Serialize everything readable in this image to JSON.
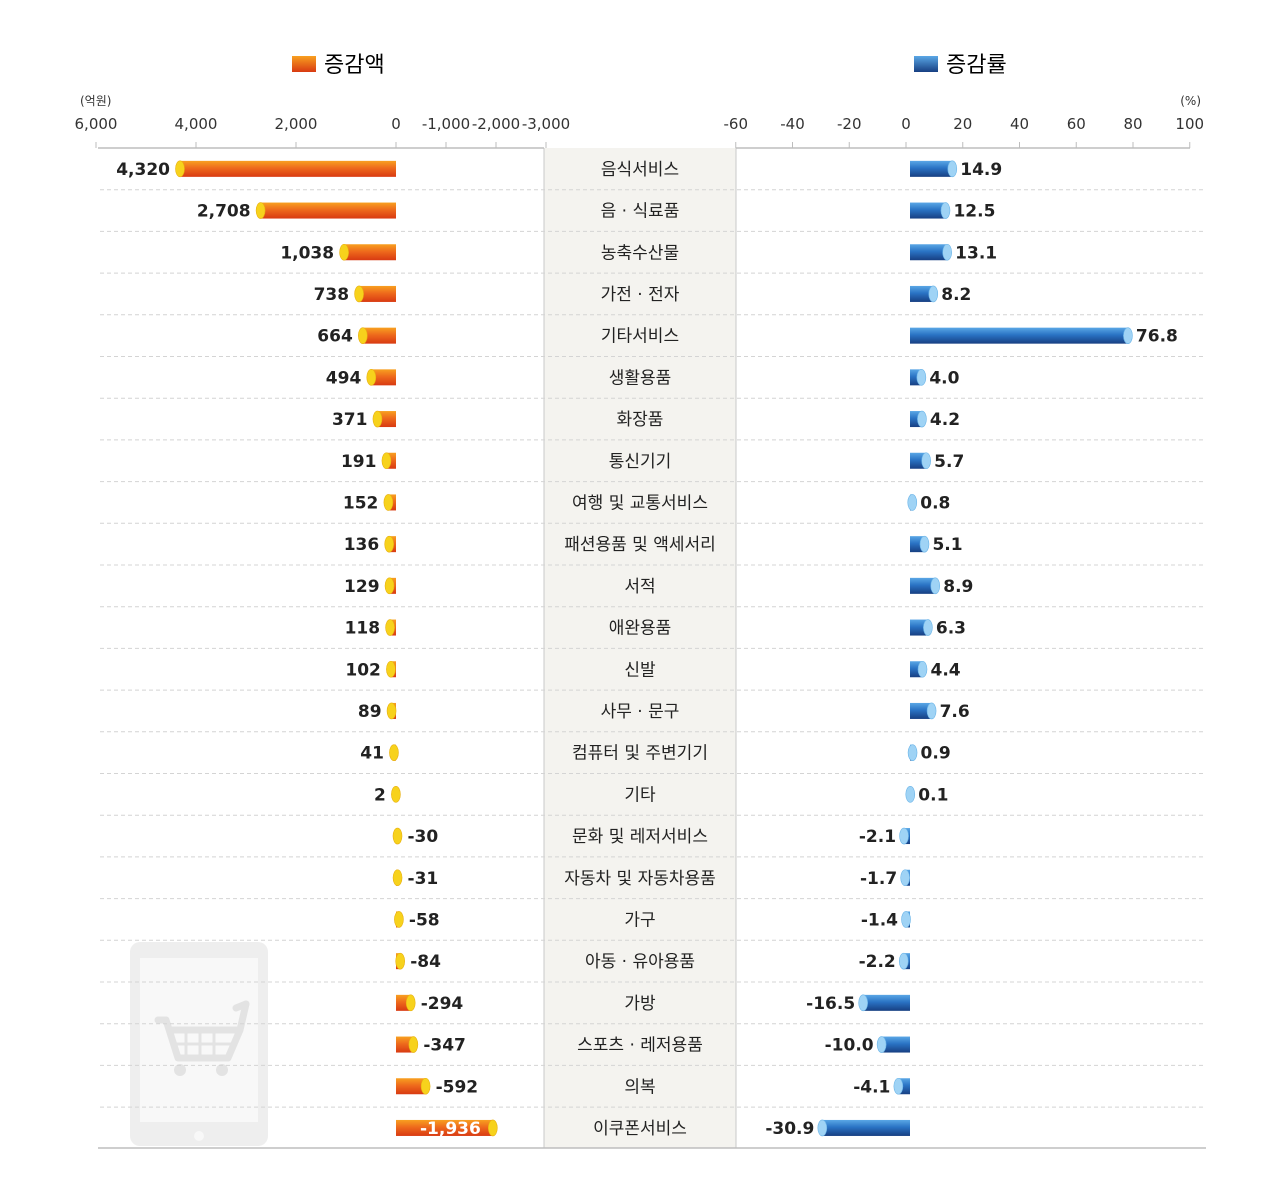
{
  "legend": {
    "amount": "증감액",
    "rate": "증감률"
  },
  "units": {
    "amount": "(억원)",
    "rate": "(%)"
  },
  "colors": {
    "amount_bar": "#e8501a",
    "amount_highlight": "#f8a020",
    "amount_cap": "#f7d21c",
    "rate_bar": "#1f5fb0",
    "rate_highlight": "#5aa7e6",
    "rate_cap": "#9fd3f5",
    "center_band": "#f4f3ef"
  },
  "chart_data": {
    "type": "bar",
    "orientation": "horizontal",
    "categories": [
      "음식서비스",
      "음 · 식료품",
      "농축수산물",
      "가전 · 전자",
      "기타서비스",
      "생활용품",
      "화장품",
      "통신기기",
      "여행 및 교통서비스",
      "패션용품 및 액세서리",
      "서적",
      "애완용품",
      "신발",
      "사무 · 문구",
      "컴퓨터 및 주변기기",
      "기타",
      "문화 및 레저서비스",
      "자동차 및 자동차용품",
      "가구",
      "아동 · 유아용품",
      "가방",
      "스포츠 · 레저용품",
      "의복",
      "이쿠폰서비스"
    ],
    "series": [
      {
        "name": "증감액",
        "values": [
          4320,
          2708,
          1038,
          738,
          664,
          494,
          371,
          191,
          152,
          136,
          129,
          118,
          102,
          89,
          41,
          2,
          -30,
          -31,
          -58,
          -84,
          -294,
          -347,
          -592,
          -1936
        ],
        "labels": [
          "4,320",
          "2,708",
          "1,038",
          "738",
          "664",
          "494",
          "371",
          "191",
          "152",
          "136",
          "129",
          "118",
          "102",
          "89",
          "41",
          "2",
          "-30",
          "-31",
          "-58",
          "-84",
          "-294",
          "-347",
          "-592",
          "-1,936"
        ]
      },
      {
        "name": "증감률",
        "values": [
          14.9,
          12.5,
          13.1,
          8.2,
          76.8,
          4.0,
          4.2,
          5.7,
          0.8,
          5.1,
          8.9,
          6.3,
          4.4,
          7.6,
          0.9,
          0.1,
          -2.1,
          -1.7,
          -1.4,
          -2.2,
          -16.5,
          -10.0,
          -4.1,
          -30.9
        ],
        "labels": [
          "14.9",
          "12.5",
          "13.1",
          "8.2",
          "76.8",
          "4.0",
          "4.2",
          "5.7",
          "0.8",
          "5.1",
          "8.9",
          "6.3",
          "4.4",
          "7.6",
          "0.9",
          "0.1",
          "-2.1",
          "-1.7",
          "-1.4",
          "-2.2",
          "-16.5",
          "-10.0",
          "-4.1",
          "-30.9"
        ]
      }
    ],
    "amount_axis": {
      "ticks": [
        6000,
        4000,
        2000,
        0,
        -1000,
        -2000,
        -3000
      ],
      "tick_labels": [
        "6,000",
        "4,000",
        "2,000",
        "0",
        "-1,000",
        "-2,000",
        "-3,000"
      ],
      "direction": "reversed"
    },
    "rate_axis": {
      "ticks": [
        -60,
        -40,
        -20,
        0,
        20,
        40,
        60,
        80,
        100
      ],
      "tick_labels": [
        "-60",
        "-40",
        "-20",
        "0",
        "20",
        "40",
        "60",
        "80",
        "100"
      ]
    },
    "grid": "dashed horizontal row separators",
    "legend_position": "top"
  },
  "decoration": {
    "icon": "tablet-cart-icon"
  }
}
